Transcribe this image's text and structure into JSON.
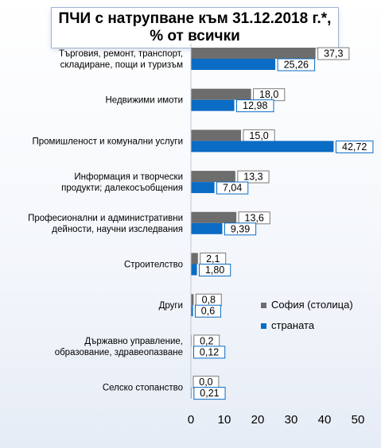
{
  "chart_data": {
    "type": "bar",
    "orientation": "horizontal",
    "title": [
      "ПЧИ с натрупване към 31.12.2018 г.*,",
      "% от всички"
    ],
    "categories": [
      [
        "Търговия, ремонт, транспорт,",
        "складиране, пощи и туризъм"
      ],
      [
        "Недвижими имоти"
      ],
      [
        "Промишленост и комунални услуги"
      ],
      [
        "Информация и творчески",
        "продукти; далекосъобщения"
      ],
      [
        "Професионални и административни",
        "дейности, научни изследвания"
      ],
      [
        "Строителство"
      ],
      [
        "Други"
      ],
      [
        "Държавно управление,",
        "образование, здравеопазване"
      ],
      [
        "Селско стопанство"
      ]
    ],
    "series": [
      {
        "name": "София (столица)",
        "color": "#6d6d6d",
        "values": [
          37.3,
          18.0,
          15.0,
          13.3,
          13.6,
          2.1,
          0.8,
          0.2,
          0.0
        ],
        "labels": [
          "37,3",
          "18,0",
          "15,0",
          "13,3",
          "13,6",
          "2,1",
          "0,8",
          "0,2",
          "0,0"
        ]
      },
      {
        "name": "страната",
        "color": "#0a6cc4",
        "values": [
          25.26,
          12.98,
          42.72,
          7.04,
          9.39,
          1.8,
          0.6,
          0.12,
          0.21
        ],
        "labels": [
          "25,26",
          "12,98",
          "42,72",
          "7,04",
          "9,39",
          "1,80",
          "0,6",
          "0,12",
          "0,21"
        ]
      }
    ],
    "xlim": [
      0,
      50
    ],
    "xticks": [
      "0",
      "10",
      "20",
      "30",
      "40",
      "50"
    ],
    "grid": false,
    "legend_position": "right"
  }
}
